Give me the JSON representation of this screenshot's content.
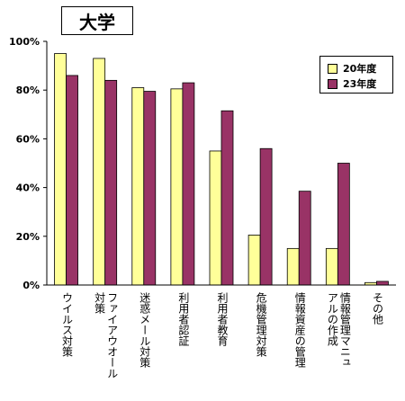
{
  "chart_data": {
    "type": "bar",
    "title": "大学",
    "categories": [
      "ウイルス対策",
      "ファイアウオール対策",
      "迷惑メール対策",
      "利用者認証",
      "利用者教育",
      "危機管理対策",
      "情報資産の管理",
      "情報管理マニュアルの作成",
      "その他"
    ],
    "category_lines": [
      [
        "ウイルス対策"
      ],
      [
        "ファイアウオール",
        "対策"
      ],
      [
        "迷惑メール対策"
      ],
      [
        "利用者認証"
      ],
      [
        "利用者教育"
      ],
      [
        "危機管理対策"
      ],
      [
        "情報資産の管理"
      ],
      [
        "情報管理マニュ",
        "アルの作成"
      ],
      [
        "その他"
      ]
    ],
    "series": [
      {
        "name": "20年度",
        "color": "#ffff99",
        "values": [
          95,
          93,
          81,
          80.5,
          55,
          20.5,
          15,
          15,
          1
        ]
      },
      {
        "name": "23年度",
        "color": "#993366",
        "values": [
          86,
          84,
          79.5,
          83,
          71.5,
          56,
          38.5,
          50,
          1.5
        ]
      }
    ],
    "ylim": [
      0,
      100
    ],
    "yticks": [
      0,
      20,
      40,
      60,
      80,
      100
    ],
    "ytick_labels": [
      "0%",
      "20%",
      "40%",
      "60%",
      "80%",
      "100%"
    ],
    "grid": false,
    "legend_position": "top-right"
  }
}
